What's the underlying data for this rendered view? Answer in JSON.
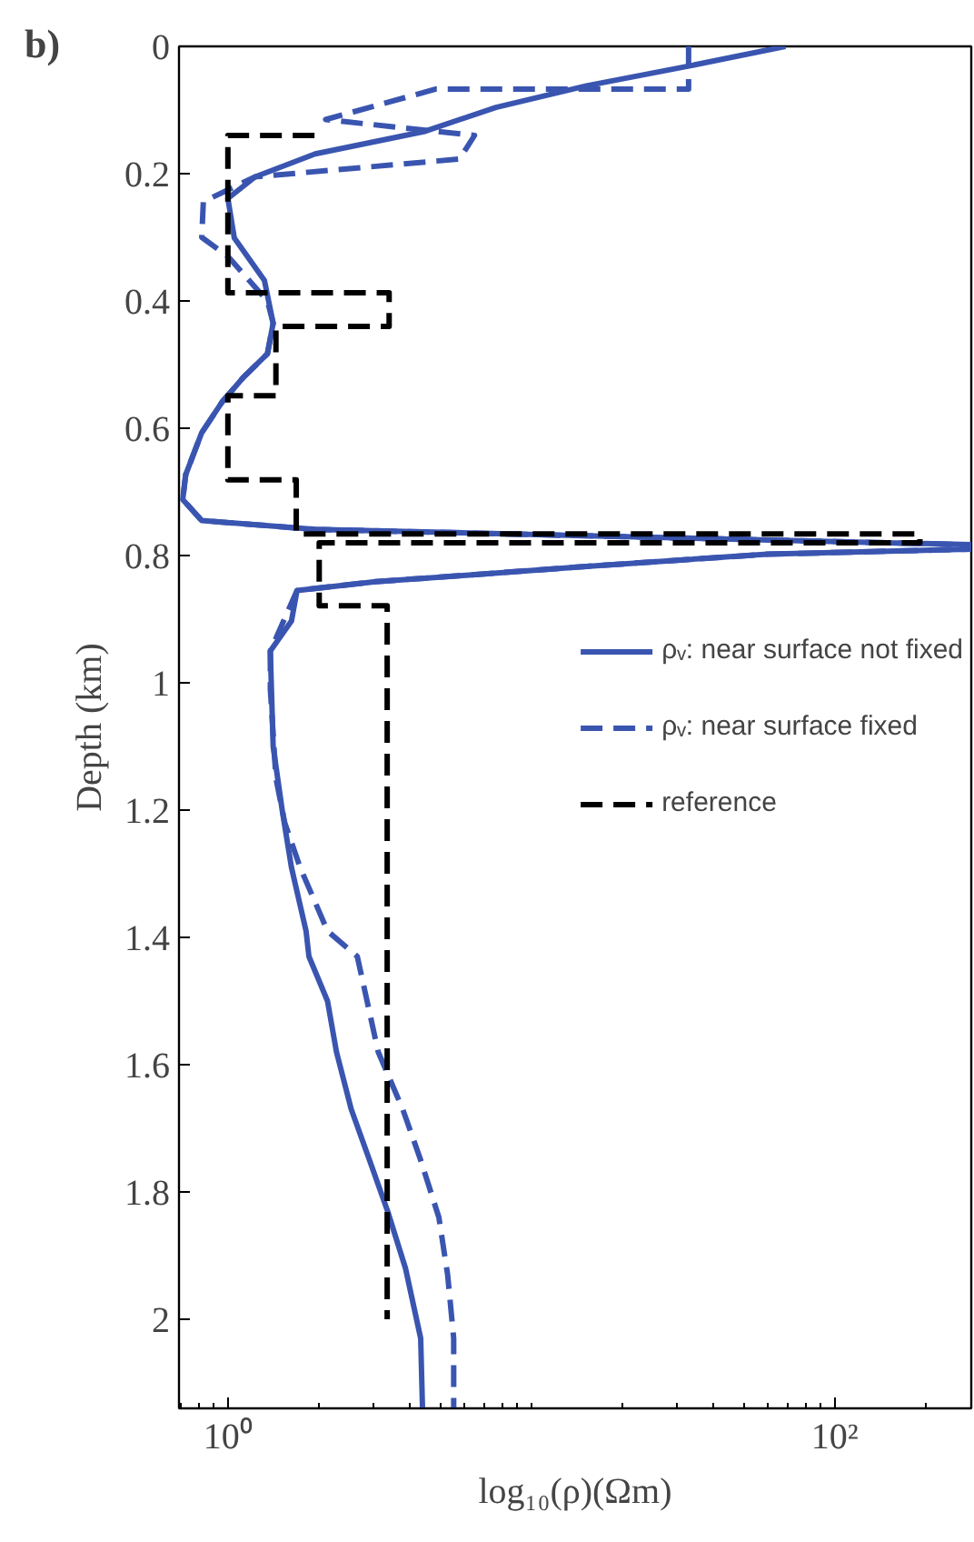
{
  "chart_data": {
    "type": "line",
    "title": "b)",
    "xlabel": "log₁₀(ρ)(Ωm)",
    "ylabel": "Depth (km)",
    "log": "x",
    "xlim": [
      0.69,
      282
    ],
    "ylim": [
      2.14,
      0
    ],
    "xticks": [
      {
        "value": 1,
        "label": "10⁰"
      },
      {
        "value": 100,
        "label": "10²"
      }
    ],
    "yticks": [
      0,
      0.2,
      0.4,
      0.6,
      0.8,
      1,
      1.2,
      1.4,
      1.6,
      1.8,
      2
    ],
    "grid": false,
    "legend": "right",
    "marker": "none",
    "series": [
      {
        "name": "ρᵥ: near surface not fixed",
        "color": "#3a55b0",
        "line_style": "solid",
        "x": [
          68.8,
          34.6,
          15.2,
          7.65,
          4.42,
          1.94,
          1.23,
          1.0,
          1.05,
          1.32,
          1.41,
          1.35,
          1.12,
          0.956,
          0.82,
          0.726,
          0.71,
          0.82,
          1.94,
          15.2,
          282,
          282,
          60,
          15.2,
          6.1,
          3.07,
          1.69,
          1.62,
          1.38,
          1.41,
          1.51,
          1.62,
          1.81,
          1.85,
          2.13,
          2.28,
          2.55,
          2.93,
          3.36,
          3.85,
          4.32,
          4.38
        ],
        "values": [
          0,
          0.029,
          0.062,
          0.096,
          0.134,
          0.169,
          0.205,
          0.239,
          0.301,
          0.368,
          0.435,
          0.483,
          0.521,
          0.559,
          0.607,
          0.673,
          0.712,
          0.745,
          0.759,
          0.769,
          0.783,
          0.79,
          0.798,
          0.817,
          0.831,
          0.841,
          0.855,
          0.903,
          0.95,
          1.1,
          1.2,
          1.29,
          1.39,
          1.43,
          1.5,
          1.58,
          1.67,
          1.75,
          1.83,
          1.92,
          2.03,
          2.14
        ]
      },
      {
        "name": "ρᵥ: near surface fixed",
        "color": "#3a55b0",
        "line_style": "dashed",
        "x": [
          33,
          33,
          4.85,
          2.1,
          6.5,
          5.8,
          1.23,
          0.83,
          0.82,
          1.0,
          1.35,
          1.41,
          1.35,
          1.12,
          0.956,
          0.82,
          0.726,
          0.71,
          0.82,
          1.94,
          15.2,
          282,
          282,
          60,
          15.2,
          6.1,
          3.07,
          1.69,
          1.38,
          1.38,
          1.44,
          1.54,
          1.73,
          2.13,
          2.67,
          3.13,
          3.77,
          4.32,
          4.96,
          5.3,
          5.55,
          5.55
        ],
        "values": [
          0,
          0.067,
          0.067,
          0.115,
          0.14,
          0.177,
          0.205,
          0.244,
          0.3,
          0.33,
          0.4,
          0.435,
          0.483,
          0.521,
          0.559,
          0.607,
          0.673,
          0.712,
          0.745,
          0.759,
          0.769,
          0.783,
          0.79,
          0.798,
          0.817,
          0.831,
          0.841,
          0.855,
          0.95,
          1.01,
          1.15,
          1.22,
          1.29,
          1.39,
          1.43,
          1.58,
          1.67,
          1.75,
          1.84,
          1.93,
          2.03,
          2.14
        ]
      },
      {
        "name": "reference",
        "color": "#000000",
        "line_style": "dashed",
        "x": [
          1.93,
          1.0,
          1.0,
          3.4,
          3.4,
          1.44,
          1.44,
          1.0,
          1.0,
          1.68,
          1.68,
          191,
          191,
          2.0,
          2.0,
          3.35,
          3.35
        ],
        "values": [
          0.14,
          0.14,
          0.387,
          0.387,
          0.44,
          0.44,
          0.549,
          0.549,
          0.681,
          0.681,
          0.766,
          0.766,
          0.78,
          0.78,
          0.879,
          0.879,
          2.0
        ]
      }
    ]
  }
}
